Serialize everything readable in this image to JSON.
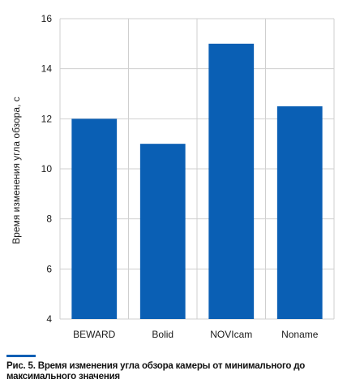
{
  "chart_data": {
    "type": "bar",
    "categories": [
      "BEWARD",
      "Bolid",
      "NOVIcam",
      "Noname"
    ],
    "values": [
      12,
      11,
      15,
      12.5
    ],
    "title": "",
    "xlabel": "",
    "ylabel": "Время изменения угла обзора, с",
    "ylim": [
      4,
      16
    ],
    "yticks": [
      4,
      6,
      8,
      10,
      12,
      14,
      16
    ],
    "grid": true,
    "bar_color": "#0a5fb4",
    "grid_color": "#cfcfcf"
  },
  "caption": "Рис. 5. Время изменения угла обзора камеры от минимального до максимального значения"
}
